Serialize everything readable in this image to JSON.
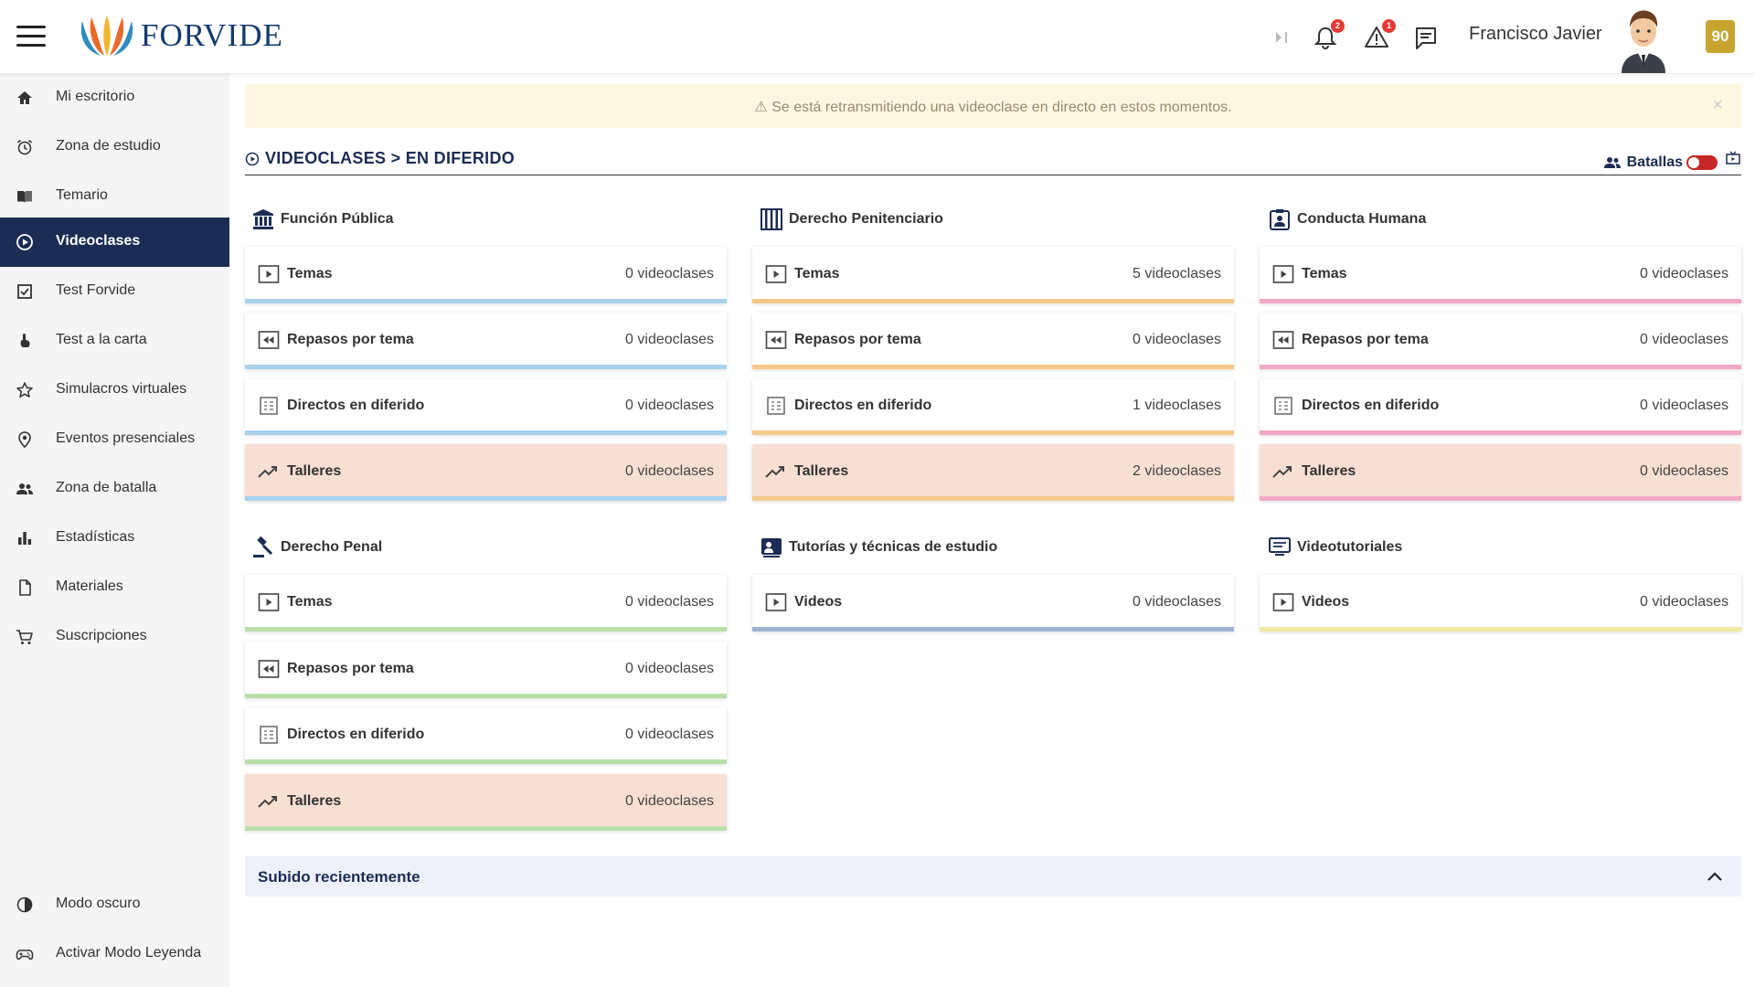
{
  "header": {
    "logo_text": "FORVIDE",
    "user_name": "Francisco Javier",
    "notifications_badge": "2",
    "alerts_badge": "1",
    "score": "90"
  },
  "sidebar": {
    "items": [
      {
        "label": "Mi escritorio",
        "icon": "home-icon"
      },
      {
        "label": "Zona de estudio",
        "icon": "alarm-icon"
      },
      {
        "label": "Temario",
        "icon": "book-icon"
      },
      {
        "label": "Videoclases",
        "icon": "play-circle-icon",
        "active": true
      },
      {
        "label": "Test Forvide",
        "icon": "checkbox-icon"
      },
      {
        "label": "Test a la carta",
        "icon": "hand-icon"
      },
      {
        "label": "Simulacros virtuales",
        "icon": "star-icon"
      },
      {
        "label": "Eventos presenciales",
        "icon": "location-icon"
      },
      {
        "label": "Zona de batalla",
        "icon": "people-icon"
      },
      {
        "label": "Estadísticas",
        "icon": "bar-chart-icon"
      },
      {
        "label": "Materiales",
        "icon": "document-icon"
      },
      {
        "label": "Suscripciones",
        "icon": "cart-icon"
      }
    ],
    "bottom": [
      {
        "label": "Modo oscuro",
        "icon": "contrast-icon"
      },
      {
        "label": "Activar Modo Leyenda",
        "icon": "gamepad-icon"
      }
    ]
  },
  "alert": {
    "text": "⚠ Se está retransmitiendo una videoclase en directo en estos momentos.",
    "close": "×"
  },
  "page": {
    "title": "VIDEOCLASES > EN DIFERIDO",
    "battles_label": "Batallas"
  },
  "categories": [
    {
      "title": "Función Pública",
      "icon": "bank-icon",
      "color": "#A9D2EE",
      "cards": [
        {
          "label": "Temas",
          "count": "0 videoclases",
          "icon": "play-square-icon"
        },
        {
          "label": "Repasos por tema",
          "count": "0 videoclases",
          "icon": "rewind-icon"
        },
        {
          "label": "Directos en diferido",
          "count": "0 videoclases",
          "icon": "calendar-grid-icon"
        },
        {
          "label": "Talleres",
          "count": "0 videoclases",
          "icon": "trending-up-icon"
        }
      ]
    },
    {
      "title": "Derecho Penitenciario",
      "icon": "jail-icon",
      "color": "#F5C98A",
      "cards": [
        {
          "label": "Temas",
          "count": "5 videoclases",
          "icon": "play-square-icon"
        },
        {
          "label": "Repasos por tema",
          "count": "0 videoclases",
          "icon": "rewind-icon"
        },
        {
          "label": "Directos en diferido",
          "count": "1 videoclases",
          "icon": "calendar-grid-icon"
        },
        {
          "label": "Talleres",
          "count": "2 videoclases",
          "icon": "trending-up-icon"
        }
      ]
    },
    {
      "title": "Conducta Humana",
      "icon": "clipboard-person-icon",
      "color": "#F2A8C6",
      "cards": [
        {
          "label": "Temas",
          "count": "0 videoclases",
          "icon": "play-square-icon"
        },
        {
          "label": "Repasos por tema",
          "count": "0 videoclases",
          "icon": "rewind-icon"
        },
        {
          "label": "Directos en diferido",
          "count": "0 videoclases",
          "icon": "calendar-grid-icon"
        },
        {
          "label": "Talleres",
          "count": "0 videoclases",
          "icon": "trending-up-icon"
        }
      ]
    },
    {
      "title": "Derecho Penal",
      "icon": "gavel-icon",
      "color": "#B8DFA8",
      "cards": [
        {
          "label": "Temas",
          "count": "0 videoclases",
          "icon": "play-square-icon"
        },
        {
          "label": "Repasos por tema",
          "count": "0 videoclases",
          "icon": "rewind-icon"
        },
        {
          "label": "Directos en diferido",
          "count": "0 videoclases",
          "icon": "calendar-grid-icon"
        },
        {
          "label": "Talleres",
          "count": "0 videoclases",
          "icon": "trending-up-icon"
        }
      ]
    },
    {
      "title": "Tutorías y técnicas de estudio",
      "icon": "tutor-icon",
      "color": "#9CB4D6",
      "cards": [
        {
          "label": "Videos",
          "count": "0 videoclases",
          "icon": "play-square-icon"
        }
      ]
    },
    {
      "title": "Videotutoriales",
      "icon": "monitor-icon",
      "color": "#F0EAA0",
      "cards": [
        {
          "label": "Videos",
          "count": "0 videoclases",
          "icon": "play-square-icon"
        }
      ]
    }
  ],
  "recent": {
    "label": "Subido recientemente"
  }
}
